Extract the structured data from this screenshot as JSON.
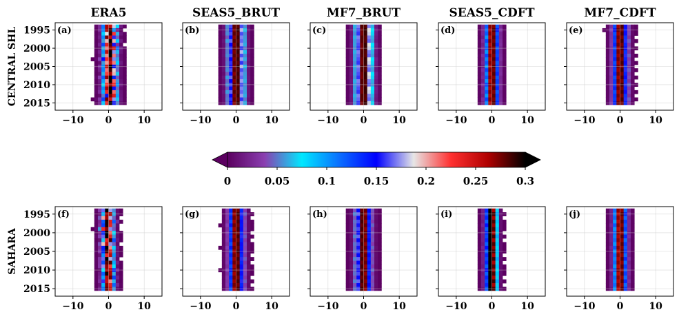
{
  "chart_data": {
    "type": "heatmap",
    "columns": [
      "ERA5",
      "SEAS5_BRUT",
      "MF7_BRUT",
      "SEAS5_CDFT",
      "MF7_CDFT"
    ],
    "rows": [
      "CENTRAL SHL",
      "SAHARA"
    ],
    "panel_labels": [
      [
        "(a)",
        "(b)",
        "(c)",
        "(d)",
        "(e)"
      ],
      [
        "(f)",
        "(g)",
        "(h)",
        "(i)",
        "(j)"
      ]
    ],
    "xlim": [
      -15,
      15
    ],
    "ylim": [
      1993,
      2017
    ],
    "x_ticks": [
      -10,
      0,
      10
    ],
    "x_tick_labels": [
      "−10",
      "0",
      "10"
    ],
    "y_ticks": [
      1995,
      2000,
      2005,
      2010,
      2015
    ],
    "y_tick_labels": [
      "1995",
      "2000",
      "2005",
      "2010",
      "2015"
    ],
    "grid": true,
    "colorbar": {
      "ticks": [
        0,
        0.05,
        0.1,
        0.15,
        0.2,
        0.25,
        0.3
      ],
      "tick_labels": [
        "0",
        "0.05",
        "0.1",
        "0.15",
        "0.2",
        "0.25",
        "0.3"
      ],
      "range": [
        0,
        0.3
      ],
      "extend": "both",
      "colors": [
        "#5b0060",
        "#8a3fb0",
        "#00e8ff",
        "#0a6fff",
        "#0000ff",
        "#e6e6e6",
        "#ff3030",
        "#b00000",
        "#000000"
      ]
    },
    "spread": [
      [
        [
          4.2,
          3.6,
          3.9,
          3.8,
          3.9,
          3.7,
          4.0,
          4.1,
          3.7,
          4.2,
          3.8,
          4.0,
          3.9,
          3.7,
          4.0,
          3.9,
          4.0,
          3.9,
          4.1,
          3.7,
          4.3,
          3.9
        ],
        [
          4.4,
          4.5,
          4.4,
          4.3,
          4.5,
          4.4,
          4.3,
          4.5,
          4.4,
          4.4,
          4.3,
          4.5,
          4.4,
          4.3,
          4.5,
          4.4,
          4.4,
          4.3,
          4.5,
          4.4,
          4.3,
          4.4
        ],
        [
          4.6,
          4.7,
          4.6,
          4.6,
          4.5,
          4.7,
          4.6,
          4.6,
          4.5,
          4.7,
          4.6,
          4.6,
          4.5,
          4.7,
          4.6,
          4.6,
          4.5,
          4.7,
          4.6,
          4.6,
          4.5,
          4.6
        ],
        [
          3.6,
          3.7,
          3.6,
          3.5,
          3.7,
          3.6,
          3.6,
          3.5,
          3.7,
          3.6,
          3.6,
          3.5,
          3.7,
          3.6,
          3.6,
          3.5,
          3.7,
          3.6,
          3.6,
          3.5,
          3.7,
          3.6
        ],
        [
          3.9,
          4.0,
          3.9,
          3.8,
          4.0,
          3.9,
          3.9,
          3.8,
          4.0,
          3.9,
          3.9,
          3.8,
          4.0,
          3.9,
          3.9,
          3.8,
          4.0,
          3.9,
          3.9,
          3.8,
          4.0,
          3.9
        ]
      ],
      [
        [
          3.4,
          3.1,
          3.3,
          3.6,
          3.2,
          3.4,
          3.3,
          3.5,
          3.2,
          3.3,
          3.5,
          3.4,
          3.2,
          3.3,
          3.6,
          3.4,
          3.3,
          3.2,
          3.5,
          3.3,
          3.4,
          3.2
        ],
        [
          3.9,
          4.0,
          3.9,
          3.9,
          4.0,
          3.9,
          3.9,
          4.0,
          3.9,
          3.9,
          4.0,
          3.9,
          3.9,
          4.0,
          3.9,
          3.9,
          4.0,
          3.9,
          3.9,
          4.0,
          3.9,
          3.9
        ],
        [
          4.1,
          4.2,
          4.1,
          4.1,
          4.2,
          4.1,
          4.1,
          4.2,
          4.1,
          4.1,
          4.2,
          4.1,
          4.1,
          4.2,
          4.1,
          4.1,
          4.2,
          4.1,
          4.1,
          4.2,
          4.1,
          4.1
        ],
        [
          3.1,
          3.2,
          3.1,
          3.1,
          3.2,
          3.1,
          3.1,
          3.2,
          3.1,
          3.1,
          3.2,
          3.1,
          3.1,
          3.2,
          3.1,
          3.1,
          3.2,
          3.1,
          3.1,
          3.2,
          3.1,
          3.1
        ],
        [
          3.5,
          3.6,
          3.5,
          3.5,
          3.6,
          3.5,
          3.5,
          3.6,
          3.5,
          3.5,
          3.6,
          3.5,
          3.5,
          3.6,
          3.5,
          3.5,
          3.6,
          3.5,
          3.5,
          3.6,
          3.5,
          3.5
        ]
      ]
    ],
    "center": [
      [
        [
          0.3,
          0.0,
          0.5,
          0.2,
          0.6,
          0.1,
          0.7,
          0.3,
          0.4,
          0.1,
          0.6,
          0.2,
          0.3,
          0.5,
          0.1,
          0.4,
          0.6,
          0.2,
          0.3,
          0.7,
          0.2,
          0.3
        ],
        [
          0.0,
          0.1,
          0.0,
          0.1,
          0.0,
          0.1,
          0.0,
          0.1,
          0.0,
          0.1,
          0.0,
          0.1,
          0.0,
          0.1,
          0.0,
          0.1,
          0.0,
          0.1,
          0.0,
          0.1,
          0.0,
          0.1
        ],
        [
          0.0,
          0.1,
          0.1,
          0.0,
          0.0,
          0.1,
          0.1,
          0.0,
          0.0,
          0.1,
          0.1,
          0.0,
          0.0,
          0.1,
          0.1,
          0.0,
          0.0,
          0.1,
          0.1,
          0.0,
          0.0,
          0.1
        ],
        [
          0.0,
          0.1,
          0.0,
          0.1,
          0.0,
          0.1,
          0.0,
          0.1,
          0.0,
          0.1,
          0.0,
          0.1,
          0.0,
          0.1,
          0.0,
          0.1,
          0.0,
          0.1,
          0.0,
          0.1,
          0.0,
          0.1
        ],
        [
          0.1,
          0.0,
          0.1,
          0.0,
          0.1,
          0.0,
          0.1,
          0.0,
          0.1,
          0.0,
          0.1,
          0.0,
          0.1,
          0.0,
          0.1,
          0.0,
          0.1,
          0.0,
          0.1,
          0.0,
          0.1,
          0.0
        ]
      ],
      [
        [
          -0.4,
          -0.1,
          -0.5,
          0.0,
          -0.3,
          -0.6,
          -0.2,
          -0.4,
          0.1,
          -0.5,
          -0.2,
          -0.3,
          0.0,
          -0.4,
          -0.1,
          -0.3,
          0.2,
          -0.2,
          0.0,
          -0.3,
          0.1,
          -0.2
        ],
        [
          0.0,
          0.1,
          0.0,
          0.1,
          0.0,
          0.1,
          0.0,
          0.1,
          0.0,
          0.1,
          0.0,
          0.1,
          0.0,
          0.1,
          0.0,
          0.1,
          0.0,
          0.1,
          0.0,
          0.1,
          0.0,
          0.1
        ],
        [
          0.0,
          -0.1,
          0.0,
          -0.1,
          0.0,
          -0.1,
          0.0,
          -0.1,
          0.0,
          -0.1,
          0.0,
          -0.1,
          0.0,
          -0.1,
          0.0,
          -0.1,
          0.0,
          -0.1,
          0.0,
          -0.1,
          0.0,
          -0.1
        ],
        [
          -0.2,
          -0.1,
          -0.2,
          -0.1,
          -0.2,
          -0.1,
          -0.2,
          -0.1,
          -0.2,
          -0.1,
          -0.2,
          -0.1,
          -0.2,
          -0.1,
          -0.2,
          -0.1,
          -0.2,
          -0.1,
          -0.2,
          -0.1,
          -0.2,
          -0.1
        ],
        [
          0.0,
          0.1,
          0.0,
          0.1,
          0.0,
          0.1,
          0.0,
          0.1,
          0.0,
          0.1,
          0.0,
          0.1,
          0.0,
          0.1,
          0.0,
          0.1,
          0.0,
          0.1,
          0.0,
          0.1,
          0.0,
          0.1
        ]
      ]
    ]
  }
}
